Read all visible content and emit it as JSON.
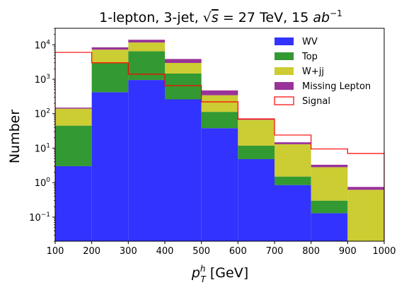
{
  "chart_data": {
    "type": "bar",
    "subtype": "stacked-histogram",
    "title": "1-lepton, 3-jet, √s = 27 TeV, 15 ab⁻¹",
    "title_parts": {
      "prefix": "1-lepton, 3-jet, ",
      "sqrt": "√",
      "s": "s",
      "eq": " = 27 TeV, 15 ",
      "ab": "ab",
      "exp": "−1"
    },
    "xlabel": "p_T^h [GeV]",
    "xlabel_parts": {
      "p": "p",
      "sub": "T",
      "sup": "h",
      "unit": " [GeV]"
    },
    "ylabel": "Number",
    "x_bin_edges": [
      100,
      200,
      300,
      400,
      500,
      600,
      700,
      800,
      900,
      1000
    ],
    "xlim": [
      100,
      1000
    ],
    "ylim": [
      0.02,
      30000
    ],
    "yscale": "log",
    "x_tick_labels": [
      "100",
      "200",
      "300",
      "400",
      "500",
      "600",
      "700",
      "800",
      "900",
      "1000"
    ],
    "y_ticks": [
      {
        "value": 0.1,
        "base": "10",
        "exp": "−1"
      },
      {
        "value": 1,
        "base": "10",
        "exp": "0"
      },
      {
        "value": 10,
        "base": "10",
        "exp": "1"
      },
      {
        "value": 100,
        "base": "10",
        "exp": "2"
      },
      {
        "value": 1000,
        "base": "10",
        "exp": "3"
      },
      {
        "value": 10000,
        "base": "10",
        "exp": "4"
      }
    ],
    "stack_order": [
      "WV",
      "Top",
      "W+jj",
      "Missing Lepton"
    ],
    "series": [
      {
        "name": "WV",
        "color": "#3333ff",
        "values": [
          3,
          420,
          950,
          260,
          38,
          4.8,
          0.85,
          0.13,
          0
        ]
      },
      {
        "name": "Top",
        "color": "#339933",
        "values": [
          42,
          2500,
          5500,
          1200,
          75,
          7,
          0.65,
          0.17,
          0
        ]
      },
      {
        "name": "W+jj",
        "color": "#cccc33",
        "values": [
          95,
          4300,
          5200,
          1500,
          230,
          55,
          11.5,
          2.5,
          0.62
        ]
      },
      {
        "name": "Missing Lepton",
        "color": "#993399",
        "values": [
          10,
          1200,
          2300,
          900,
          130,
          6,
          1.8,
          0.5,
          0.13
        ]
      }
    ],
    "signal": {
      "name": "Signal",
      "color": "#ff0000",
      "values": [
        6000,
        3000,
        1400,
        650,
        220,
        70,
        24,
        9.5,
        7
      ]
    },
    "legend": {
      "placement": "top-right",
      "entries": [
        {
          "label": "WV",
          "color": "#3333ff",
          "style": "filled"
        },
        {
          "label": "Top",
          "color": "#339933",
          "style": "filled"
        },
        {
          "label": "W+jj",
          "color": "#cccc33",
          "style": "filled"
        },
        {
          "label": "Missing Lepton",
          "color": "#993399",
          "style": "filled"
        },
        {
          "label": "Signal",
          "color": "#ff0000",
          "style": "outline"
        }
      ]
    },
    "grid": false
  }
}
